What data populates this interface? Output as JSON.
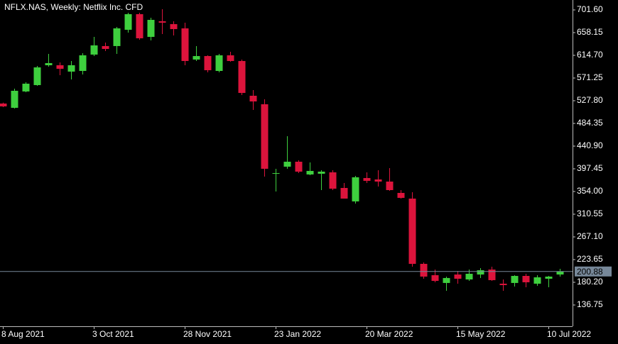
{
  "chart_data": {
    "type": "candlestick",
    "title": "NFLX.NAS, Weekly:  Netflix Inc. CFD",
    "categories": [
      "8 Aug 2021",
      null,
      null,
      null,
      null,
      null,
      null,
      null,
      "3 Oct 2021",
      null,
      null,
      null,
      null,
      null,
      null,
      null,
      "28 Nov 2021",
      null,
      null,
      null,
      null,
      null,
      null,
      null,
      "23 Jan 2022",
      null,
      null,
      null,
      null,
      null,
      null,
      null,
      "20 Mar 2022",
      null,
      null,
      null,
      null,
      null,
      null,
      null,
      "15 May 2022",
      null,
      null,
      null,
      null,
      null,
      null,
      null,
      "10 Jul 2022",
      null
    ],
    "open": [
      522.4,
      514.2,
      545.5,
      557.7,
      595.7,
      595.7,
      583.5,
      584.8,
      616.1,
      632.4,
      632.4,
      663.6,
      693.5,
      650.0,
      679.9,
      674.4,
      666.3,
      606.6,
      613.3,
      584.8,
      614.7,
      603.8,
      537.3,
      521.0,
      388.0,
      401.5,
      411.0,
      386.6,
      388.0,
      390.7,
      360.8,
      335.0,
      379.8,
      377.1,
      373.0,
      351.3,
      340.4,
      215.5,
      193.8,
      178.9,
      195.1,
      185.6,
      195.1,
      204.6,
      177.5,
      178.9,
      192.4,
      177.5,
      187.0,
      195.1
    ],
    "high": [
      524.0,
      550.9,
      563.1,
      594.3,
      617.4,
      601.1,
      603.8,
      618.8,
      650.0,
      639.1,
      669.0,
      696.2,
      696.2,
      686.7,
      703.0,
      679.9,
      677.2,
      632.4,
      614.7,
      617.4,
      621.5,
      606.6,
      548.2,
      530.5,
      397.5,
      459.9,
      413.8,
      409.7,
      394.7,
      394.7,
      370.3,
      383.9,
      390.7,
      394.7,
      398.8,
      356.7,
      352.7,
      218.2,
      204.6,
      191.1,
      201.9,
      204.6,
      207.4,
      210.1,
      185.6,
      193.8,
      196.5,
      193.8,
      192.4,
      206.0
    ],
    "low": [
      515.5,
      512.9,
      544.1,
      556.3,
      593.0,
      576.7,
      568.5,
      578.0,
      613.3,
      622.9,
      617.4,
      658.2,
      644.6,
      643.2,
      655.4,
      652.7,
      595.7,
      603.8,
      582.1,
      582.1,
      602.5,
      538.7,
      510.2,
      382.5,
      354.0,
      397.5,
      389.3,
      385.2,
      356.7,
      356.7,
      340.4,
      330.9,
      370.3,
      363.5,
      355.4,
      340.4,
      210.1,
      187.0,
      180.2,
      163.9,
      177.5,
      182.9,
      188.4,
      182.9,
      163.9,
      172.1,
      170.7,
      173.4,
      170.7,
      191.1
    ],
    "close": [
      516.9,
      546.8,
      560.4,
      591.6,
      599.8,
      588.9,
      595.7,
      614.7,
      633.7,
      626.9,
      666.3,
      693.5,
      647.3,
      682.6,
      677.2,
      664.9,
      603.8,
      613.3,
      586.2,
      614.7,
      603.8,
      542.7,
      526.4,
      397.5,
      389.3,
      411.0,
      392.0,
      393.4,
      392.0,
      359.4,
      340.4,
      381.2,
      374.4,
      373.0,
      356.7,
      341.8,
      215.5,
      191.1,
      182.9,
      188.4,
      187.0,
      196.5,
      203.3,
      184.3,
      174.8,
      192.4,
      180.2,
      189.7,
      191.1,
      200.88
    ],
    "up_color": "#3ecf3e",
    "down_color": "#dc143c",
    "last_price": 200.88,
    "last_price_color": "#778899",
    "ylim": [
      96.0,
      720.6
    ],
    "yticks": [
      136.75,
      {
        "value": 180.2,
        "label": "180.20"
      },
      223.65,
      {
        "value": 267.1,
        "label": "267.10"
      },
      310.55,
      {
        "value": 354.0,
        "label": "354.00"
      },
      397.45,
      {
        "value": 440.9,
        "label": "440.90"
      },
      484.35,
      {
        "value": 527.8,
        "label": "527.80"
      },
      571.25,
      {
        "value": 614.7,
        "label": "614.70"
      },
      658.15,
      {
        "value": 701.6,
        "label": "701.60"
      }
    ],
    "grid": false
  }
}
